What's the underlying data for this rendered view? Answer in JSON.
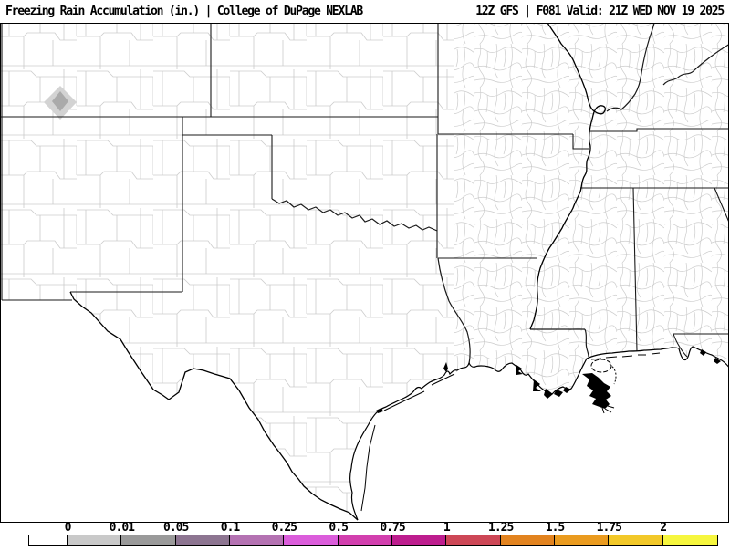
{
  "header": {
    "product_title": "Freezing Rain Accumulation (in.) | College of DuPage NEXLAB",
    "run_info": "12Z GFS | F081 Valid: 21Z WED NOV 19 2025"
  },
  "colorbar": {
    "unit": "in.",
    "labels": [
      "0",
      "0.01",
      "0.05",
      "0.1",
      "0.25",
      "0.5",
      "0.75",
      "1",
      "1.25",
      "1.5",
      "1.75",
      "2"
    ],
    "colors": [
      "#ffffff",
      "#c9c9c9",
      "#9a9a9a",
      "#8d7591",
      "#b472b2",
      "#db5ddb",
      "#d23fae",
      "#bd1d8e",
      "#cd4756",
      "#e2831f",
      "#ea9b1f",
      "#f2c829",
      "#f6f63e"
    ]
  },
  "map": {
    "region": "South-central United States with county outlines",
    "freezing_rain_area": {
      "outer_color": "#d3d3d3",
      "inner_color": "#aaaaaa",
      "outer_range_in": "0-0.01",
      "inner_range_in": "0.01-0.05"
    }
  }
}
